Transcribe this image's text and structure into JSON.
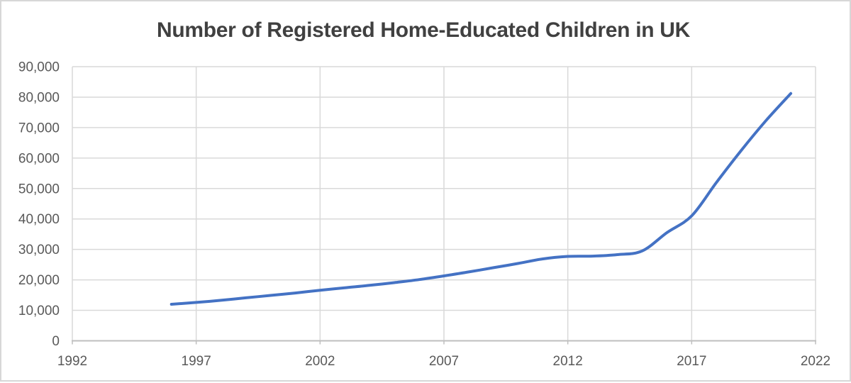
{
  "chart": {
    "title": "Number of Registered Home-Educated Children in UK"
  },
  "chart_data": {
    "type": "line",
    "title": "Number of Registered Home-Educated Children in UK",
    "xlabel": "",
    "ylabel": "",
    "xlim": [
      1992,
      2022
    ],
    "ylim": [
      0,
      90000
    ],
    "x_ticks": [
      1992,
      1997,
      2002,
      2007,
      2012,
      2017,
      2022
    ],
    "y_ticks": [
      0,
      10000,
      20000,
      30000,
      40000,
      50000,
      60000,
      70000,
      80000,
      90000
    ],
    "grid": true,
    "legend": false,
    "colors": {
      "line": "#4472C4",
      "title_text": "#404040",
      "axis_labels": "#595959",
      "gridlines": "#D9D9D9",
      "axis_line": "#BFBFBF"
    },
    "series": [
      {
        "name": "Registered home-educated children",
        "color": "#4472C4",
        "smooth": true,
        "x": [
          1996,
          1997,
          1998,
          1999,
          2000,
          2001,
          2002,
          2003,
          2004,
          2005,
          2006,
          2007,
          2008,
          2009,
          2010,
          2011,
          2012,
          2013,
          2014,
          2015,
          2016,
          2017,
          2018,
          2019,
          2020,
          2021
        ],
        "values": [
          12000,
          12600,
          13300,
          14100,
          14900,
          15700,
          16600,
          17400,
          18200,
          19100,
          20100,
          21300,
          22600,
          24000,
          25400,
          26900,
          27700,
          27800,
          28300,
          29500,
          35500,
          41000,
          52000,
          62500,
          72300,
          81200
        ]
      }
    ]
  }
}
